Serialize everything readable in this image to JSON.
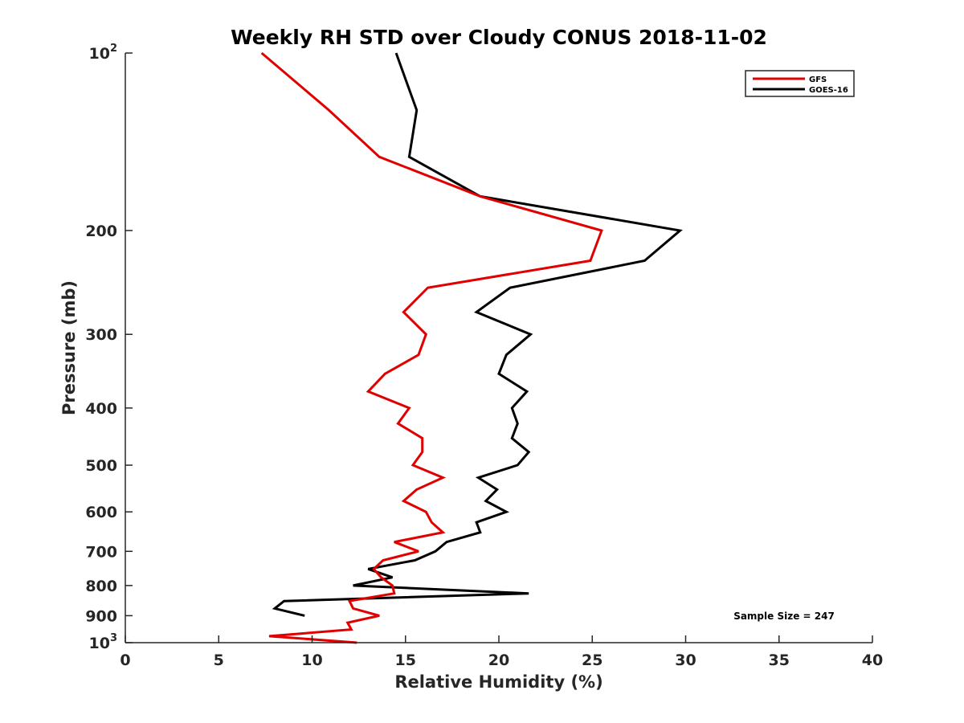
{
  "chart_data": {
    "type": "line",
    "title": "Weekly RH STD over Cloudy CONUS 2018-11-02",
    "xlabel": "Relative Humidity (%)",
    "ylabel": "Pressure (mb)",
    "xlim": [
      0,
      40
    ],
    "ylim": [
      100,
      1000
    ],
    "y_scale": "log",
    "y_reversed": true,
    "x_ticks": [
      0,
      5,
      10,
      15,
      20,
      25,
      30,
      35,
      40
    ],
    "x_tick_labels": [
      "0",
      "5",
      "10",
      "15",
      "20",
      "25",
      "30",
      "35",
      "40"
    ],
    "y_ticks": [
      100,
      200,
      300,
      400,
      500,
      600,
      700,
      800,
      900,
      1000
    ],
    "y_tick_labels": [
      {
        "base": "10",
        "sup": "2"
      },
      {
        "base": "200",
        "sup": ""
      },
      {
        "base": "300",
        "sup": ""
      },
      {
        "base": "400",
        "sup": ""
      },
      {
        "base": "500",
        "sup": ""
      },
      {
        "base": "600",
        "sup": ""
      },
      {
        "base": "700",
        "sup": ""
      },
      {
        "base": "800",
        "sup": ""
      },
      {
        "base": "900",
        "sup": ""
      },
      {
        "base": "10",
        "sup": "3"
      }
    ],
    "grid": false,
    "legend_position": "top-right",
    "annotation": "Sample Size = 247",
    "series": [
      {
        "name": "GFS",
        "color": "#e00000",
        "points": [
          {
            "x": 7.3,
            "y": 100
          },
          {
            "x": 10.9,
            "y": 125
          },
          {
            "x": 13.6,
            "y": 150
          },
          {
            "x": 19.0,
            "y": 175
          },
          {
            "x": 25.5,
            "y": 200
          },
          {
            "x": 24.9,
            "y": 225
          },
          {
            "x": 16.2,
            "y": 250
          },
          {
            "x": 14.9,
            "y": 275
          },
          {
            "x": 16.1,
            "y": 300
          },
          {
            "x": 15.7,
            "y": 325
          },
          {
            "x": 13.9,
            "y": 350
          },
          {
            "x": 13.0,
            "y": 375
          },
          {
            "x": 15.2,
            "y": 400
          },
          {
            "x": 14.6,
            "y": 425
          },
          {
            "x": 15.9,
            "y": 450
          },
          {
            "x": 15.9,
            "y": 475
          },
          {
            "x": 15.4,
            "y": 500
          },
          {
            "x": 17.0,
            "y": 525
          },
          {
            "x": 15.6,
            "y": 550
          },
          {
            "x": 14.9,
            "y": 575
          },
          {
            "x": 16.1,
            "y": 600
          },
          {
            "x": 16.4,
            "y": 625
          },
          {
            "x": 17.0,
            "y": 650
          },
          {
            "x": 14.4,
            "y": 675
          },
          {
            "x": 15.7,
            "y": 700
          },
          {
            "x": 13.8,
            "y": 725
          },
          {
            "x": 13.3,
            "y": 750
          },
          {
            "x": 13.7,
            "y": 775
          },
          {
            "x": 14.3,
            "y": 800
          },
          {
            "x": 14.4,
            "y": 825
          },
          {
            "x": 12.0,
            "y": 850
          },
          {
            "x": 12.2,
            "y": 875
          },
          {
            "x": 13.6,
            "y": 900
          },
          {
            "x": 11.9,
            "y": 925
          },
          {
            "x": 12.1,
            "y": 950
          },
          {
            "x": 7.7,
            "y": 975
          },
          {
            "x": 12.4,
            "y": 1000
          }
        ]
      },
      {
        "name": "GOES-16",
        "color": "#000000",
        "points": [
          {
            "x": 14.5,
            "y": 100
          },
          {
            "x": 15.6,
            "y": 125
          },
          {
            "x": 15.2,
            "y": 150
          },
          {
            "x": 19.0,
            "y": 175
          },
          {
            "x": 29.7,
            "y": 200
          },
          {
            "x": 27.8,
            "y": 225
          },
          {
            "x": 20.6,
            "y": 250
          },
          {
            "x": 18.8,
            "y": 275
          },
          {
            "x": 21.7,
            "y": 300
          },
          {
            "x": 20.4,
            "y": 325
          },
          {
            "x": 20.0,
            "y": 350
          },
          {
            "x": 21.5,
            "y": 375
          },
          {
            "x": 20.7,
            "y": 400
          },
          {
            "x": 21.0,
            "y": 425
          },
          {
            "x": 20.7,
            "y": 450
          },
          {
            "x": 21.6,
            "y": 475
          },
          {
            "x": 21.0,
            "y": 500
          },
          {
            "x": 18.9,
            "y": 525
          },
          {
            "x": 19.9,
            "y": 550
          },
          {
            "x": 19.3,
            "y": 575
          },
          {
            "x": 20.4,
            "y": 600
          },
          {
            "x": 18.8,
            "y": 625
          },
          {
            "x": 19.0,
            "y": 650
          },
          {
            "x": 17.2,
            "y": 675
          },
          {
            "x": 16.6,
            "y": 700
          },
          {
            "x": 15.5,
            "y": 725
          },
          {
            "x": 13.0,
            "y": 750
          },
          {
            "x": 14.3,
            "y": 775
          },
          {
            "x": 12.2,
            "y": 800
          },
          {
            "x": 21.6,
            "y": 825
          },
          {
            "x": 8.5,
            "y": 850
          },
          {
            "x": 8.0,
            "y": 875
          },
          {
            "x": 9.6,
            "y": 900
          }
        ]
      }
    ]
  }
}
